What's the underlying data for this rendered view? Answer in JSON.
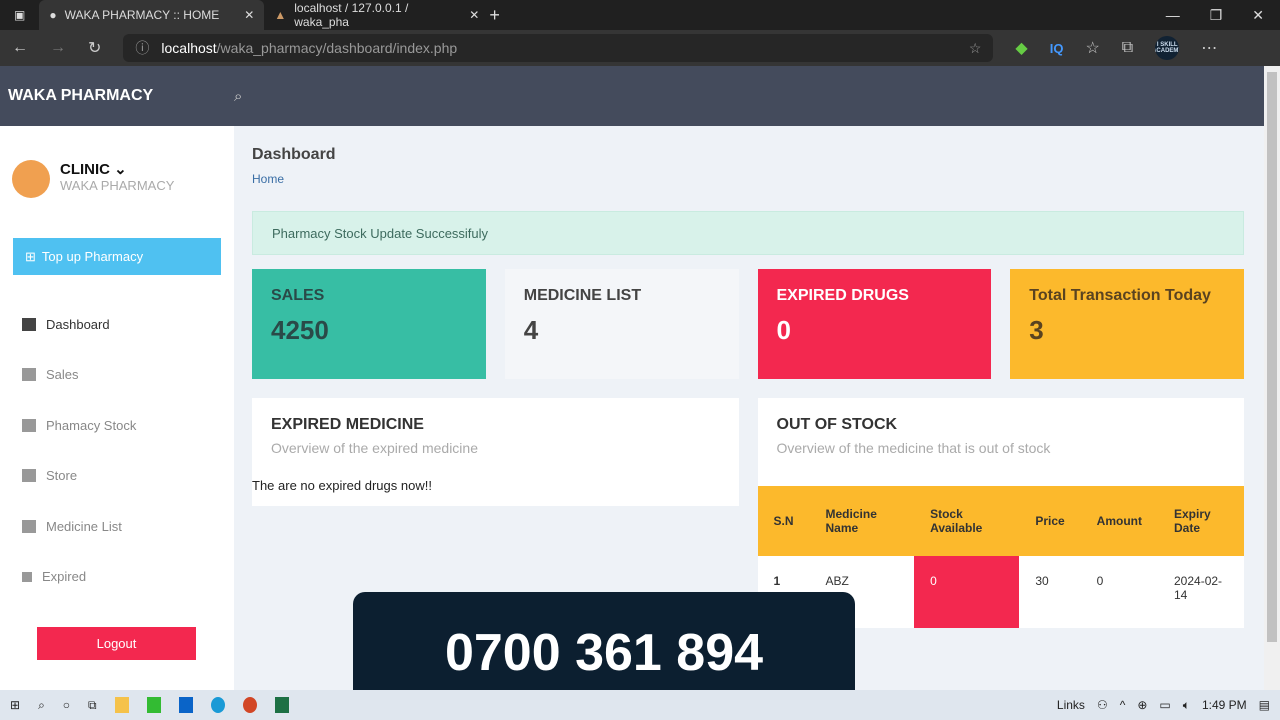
{
  "browser": {
    "tabs": [
      {
        "title": "WAKA PHARMACY :: HOME"
      },
      {
        "title": "localhost / 127.0.0.1 / waka_pha"
      }
    ],
    "url_host": "localhost",
    "url_path": "/waka_pharmacy/dashboard/index.php",
    "profile": "I SKILL ACADEMY"
  },
  "app": {
    "brand": "WAKA PHARMACY"
  },
  "sidebar": {
    "user": "CLINIC",
    "org": "WAKA PHARMACY",
    "topup": "Top up Pharmacy",
    "items": [
      {
        "label": "Dashboard"
      },
      {
        "label": "Sales"
      },
      {
        "label": "Phamacy Stock"
      },
      {
        "label": "Store"
      },
      {
        "label": "Medicine List"
      },
      {
        "label": "Expired"
      }
    ],
    "logout": "Logout"
  },
  "main": {
    "title": "Dashboard",
    "breadcrumb": "Home",
    "alert": "Pharmacy Stock Update Successifuly",
    "cards": [
      {
        "title": "SALES",
        "value": "4250",
        "color": "#37bea4"
      },
      {
        "title": "MEDICINE LIST",
        "value": "4",
        "color": "#f4f6f9"
      },
      {
        "title": "EXPIRED DRUGS",
        "value": "0",
        "color": "#f3284f"
      },
      {
        "title": "Total Transaction Today",
        "value": "3",
        "color": "#fcb92c"
      }
    ],
    "expired": {
      "title": "EXPIRED MEDICINE",
      "subtitle": "Overview of the expired medicine",
      "empty": "The are no expired drugs now!!"
    },
    "out_of_stock": {
      "title": "OUT OF STOCK",
      "subtitle": "Overview of the medicine that is out of stock",
      "columns": [
        "S.N",
        "Medicine Name",
        "Stock Available",
        "Price",
        "Amount",
        "Expiry Date"
      ],
      "rows": [
        [
          "1",
          "ABZ",
          "0",
          "30",
          "0",
          "2024-02-14"
        ]
      ]
    }
  },
  "overlay": {
    "phone": "0700 361 894"
  },
  "taskbar": {
    "links": "Links",
    "time": "1:49 PM"
  }
}
